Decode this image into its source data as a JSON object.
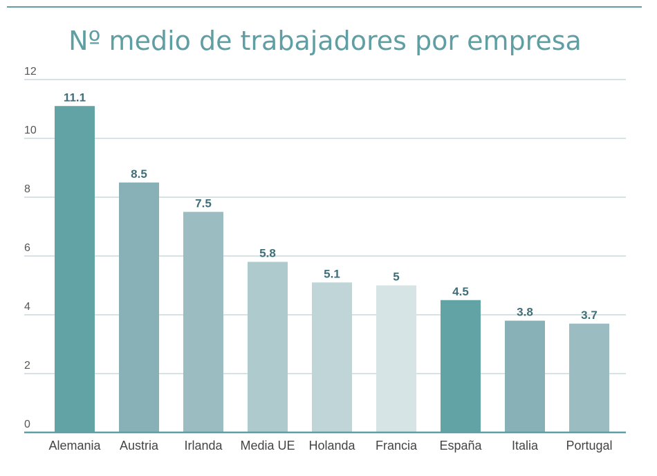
{
  "chart_data": {
    "type": "bar",
    "title": "Nº medio de trabajadores por empresa",
    "xlabel": "",
    "ylabel": "",
    "ylim": [
      0,
      12
    ],
    "yticks": [
      0,
      2,
      4,
      6,
      8,
      10,
      12
    ],
    "categories": [
      "Alemania",
      "Austria",
      "Irlanda",
      "Media UE",
      "Holanda",
      "Francia",
      "España",
      "Italia",
      "Portugal"
    ],
    "values": [
      11.1,
      8.5,
      7.5,
      5.8,
      5.1,
      5,
      4.5,
      3.8,
      3.7
    ],
    "value_labels": [
      "11.1",
      "8.5",
      "7.5",
      "5.8",
      "5.1",
      "5",
      "4.5",
      "3.8",
      "3.7"
    ],
    "bar_colors": [
      "#62a3a6",
      "#87b1b6",
      "#9bbdc1",
      "#afcacd",
      "#c0d5d7",
      "#d6e4e5",
      "#62a3a6",
      "#87b1b6",
      "#9bbdc1"
    ],
    "grid": true,
    "legend": "none"
  },
  "colors": {
    "title": "#5f9ea3",
    "top_rule": "#5f9ea3",
    "gridline": "#c9dadc",
    "baseline": "#5f9ea3"
  }
}
